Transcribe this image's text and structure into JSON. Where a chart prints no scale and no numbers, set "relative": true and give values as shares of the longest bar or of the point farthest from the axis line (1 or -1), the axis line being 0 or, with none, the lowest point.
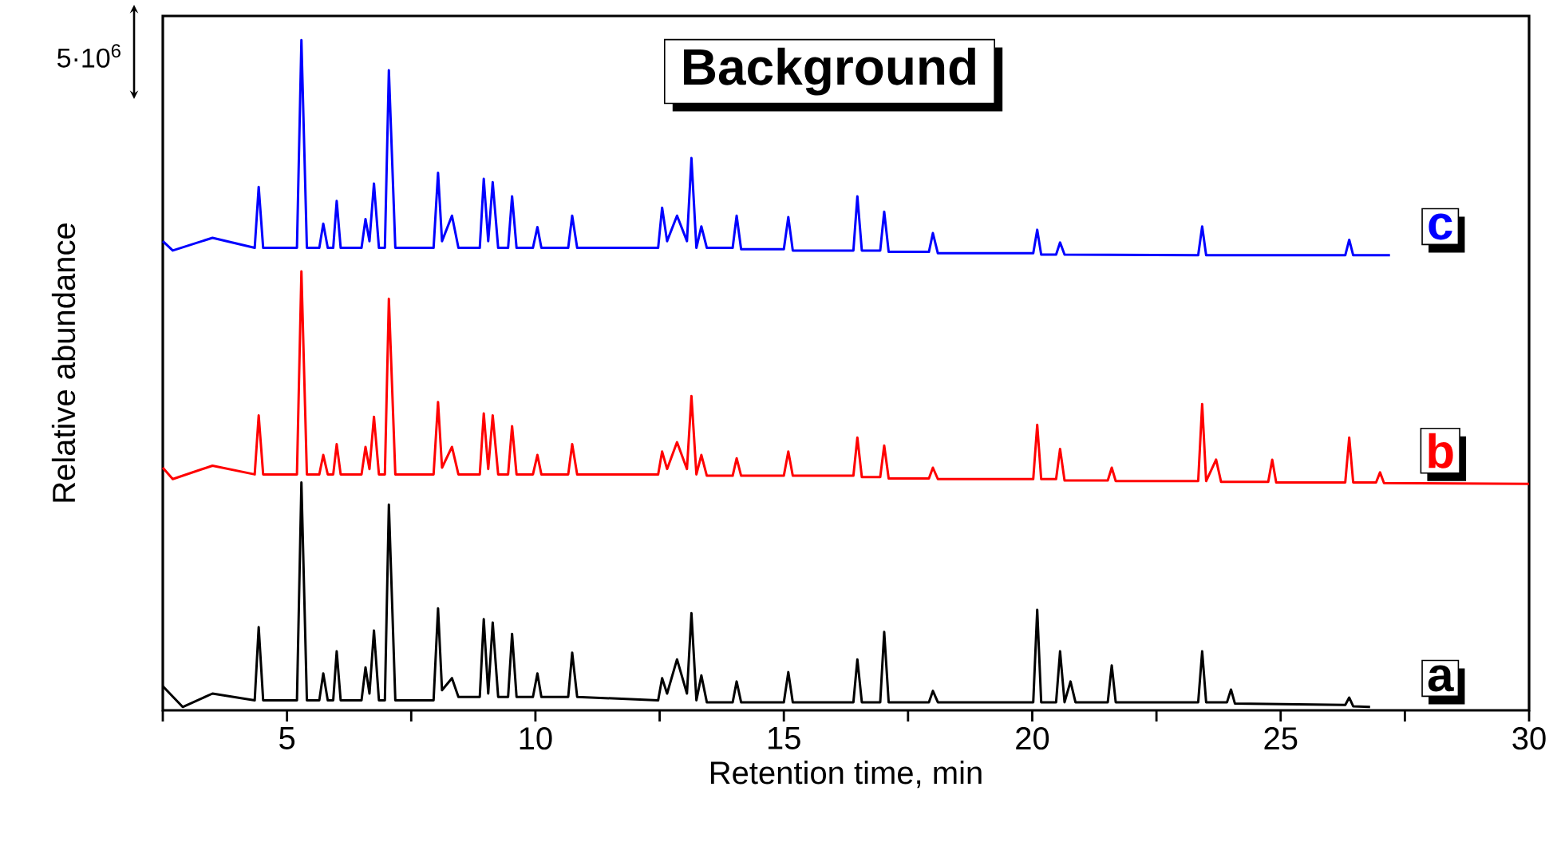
{
  "chart_data": {
    "type": "line",
    "title": "Background",
    "xlabel": "Retention time, min",
    "ylabel": "Relative abundance",
    "relative": true,
    "annotations": [
      "5·10$^{6}$"
    ],
    "xlim": [
      2.5,
      30
    ],
    "xticks": [
      {
        "value": 2.5,
        "label": null
      },
      5,
      {
        "value": 7.5,
        "label": null
      },
      10,
      {
        "value": 12.5,
        "label": null
      },
      15,
      {
        "value": 17.5,
        "label": null
      },
      20,
      {
        "value": 22.5,
        "label": null
      },
      25,
      {
        "value": 27.5,
        "label": null
      },
      30
    ],
    "series": [
      {
        "name": "a",
        "color": "#000000",
        "x": [
          2.5,
          2.9,
          3.5,
          4.35,
          4.43,
          4.52,
          5.2,
          5.29,
          5.4,
          5.65,
          5.73,
          5.82,
          5.93,
          6.0,
          6.08,
          6.5,
          6.58,
          6.66,
          6.75,
          6.85,
          6.97,
          7.05,
          7.18,
          7.95,
          8.04,
          8.12,
          8.32,
          8.45,
          8.88,
          8.96,
          9.05,
          9.14,
          9.25,
          9.45,
          9.53,
          9.62,
          9.95,
          10.04,
          10.12,
          10.66,
          10.74,
          10.84,
          12.47,
          12.55,
          12.65,
          12.85,
          13.05,
          13.14,
          13.24,
          13.34,
          13.45,
          13.97,
          14.05,
          14.14,
          15.0,
          15.09,
          15.18,
          16.4,
          16.48,
          16.57,
          16.94,
          17.02,
          17.11,
          17.92,
          18.0,
          18.1,
          20.02,
          20.1,
          20.18,
          20.48,
          20.56,
          20.65,
          20.77,
          20.87,
          21.52,
          21.6,
          21.68,
          23.34,
          23.42,
          23.5,
          23.92,
          24.0,
          24.08,
          26.3,
          26.38,
          26.46,
          26.8
        ],
        "values": [
          0.036,
          0.005,
          0.025,
          0.015,
          0.124,
          0.015,
          0.015,
          0.34,
          0.015,
          0.015,
          0.055,
          0.015,
          0.015,
          0.088,
          0.015,
          0.015,
          0.064,
          0.025,
          0.119,
          0.015,
          0.015,
          0.307,
          0.015,
          0.015,
          0.152,
          0.03,
          0.048,
          0.02,
          0.02,
          0.136,
          0.025,
          0.131,
          0.02,
          0.02,
          0.114,
          0.02,
          0.02,
          0.055,
          0.02,
          0.02,
          0.086,
          0.02,
          0.015,
          0.048,
          0.025,
          0.076,
          0.025,
          0.145,
          0.015,
          0.052,
          0.012,
          0.012,
          0.043,
          0.012,
          0.012,
          0.057,
          0.012,
          0.012,
          0.076,
          0.012,
          0.012,
          0.117,
          0.012,
          0.012,
          0.029,
          0.012,
          0.012,
          0.15,
          0.012,
          0.012,
          0.088,
          0.012,
          0.043,
          0.012,
          0.012,
          0.067,
          0.012,
          0.012,
          0.088,
          0.012,
          0.012,
          0.031,
          0.01,
          0.008,
          0.019,
          0.006,
          0.005
        ]
      },
      {
        "name": "b",
        "color": "#ff0000",
        "x": [
          2.5,
          2.7,
          3.5,
          4.35,
          4.43,
          4.52,
          5.2,
          5.29,
          5.4,
          5.65,
          5.73,
          5.82,
          5.93,
          6.0,
          6.08,
          6.5,
          6.58,
          6.66,
          6.75,
          6.85,
          6.97,
          7.05,
          7.18,
          7.95,
          8.04,
          8.12,
          8.32,
          8.45,
          8.88,
          8.96,
          9.05,
          9.14,
          9.25,
          9.45,
          9.53,
          9.62,
          9.95,
          10.04,
          10.12,
          10.66,
          10.74,
          10.84,
          12.47,
          12.55,
          12.65,
          12.85,
          13.05,
          13.14,
          13.24,
          13.34,
          13.45,
          13.97,
          14.05,
          14.14,
          15.0,
          15.09,
          15.18,
          16.4,
          16.48,
          16.57,
          16.94,
          17.02,
          17.11,
          17.92,
          18.0,
          18.1,
          20.02,
          20.1,
          20.18,
          20.48,
          20.56,
          20.65,
          21.52,
          21.6,
          21.68,
          23.34,
          23.42,
          23.5,
          23.7,
          23.8,
          24.75,
          24.83,
          24.91,
          26.3,
          26.38,
          26.46,
          26.92,
          27.0,
          27.08,
          30
        ],
        "values": [
          0.362,
          0.345,
          0.365,
          0.352,
          0.44,
          0.352,
          0.352,
          0.655,
          0.352,
          0.352,
          0.381,
          0.352,
          0.352,
          0.397,
          0.352,
          0.352,
          0.393,
          0.36,
          0.438,
          0.352,
          0.352,
          0.614,
          0.352,
          0.352,
          0.46,
          0.362,
          0.393,
          0.352,
          0.352,
          0.443,
          0.36,
          0.44,
          0.352,
          0.352,
          0.424,
          0.352,
          0.352,
          0.381,
          0.352,
          0.352,
          0.397,
          0.352,
          0.352,
          0.386,
          0.36,
          0.4,
          0.36,
          0.469,
          0.352,
          0.381,
          0.35,
          0.35,
          0.376,
          0.35,
          0.35,
          0.386,
          0.35,
          0.35,
          0.407,
          0.348,
          0.348,
          0.395,
          0.346,
          0.346,
          0.362,
          0.345,
          0.345,
          0.426,
          0.345,
          0.345,
          0.39,
          0.343,
          0.343,
          0.362,
          0.342,
          0.342,
          0.457,
          0.342,
          0.374,
          0.341,
          0.341,
          0.374,
          0.34,
          0.34,
          0.407,
          0.34,
          0.34,
          0.355,
          0.339,
          0.338
        ]
      },
      {
        "name": "c",
        "color": "#0000ff",
        "x": [
          2.5,
          2.7,
          3.5,
          4.35,
          4.43,
          4.52,
          5.2,
          5.29,
          5.4,
          5.65,
          5.73,
          5.82,
          5.93,
          6.0,
          6.08,
          6.5,
          6.58,
          6.66,
          6.75,
          6.85,
          6.97,
          7.05,
          7.18,
          7.95,
          8.04,
          8.12,
          8.32,
          8.45,
          8.88,
          8.96,
          9.05,
          9.14,
          9.25,
          9.45,
          9.53,
          9.62,
          9.95,
          10.04,
          10.12,
          10.66,
          10.74,
          10.84,
          12.47,
          12.55,
          12.65,
          12.85,
          13.05,
          13.14,
          13.24,
          13.34,
          13.45,
          13.97,
          14.05,
          14.14,
          15.0,
          15.09,
          15.18,
          16.4,
          16.48,
          16.57,
          16.94,
          17.02,
          17.11,
          17.92,
          18.0,
          18.1,
          20.02,
          20.1,
          20.18,
          20.48,
          20.56,
          20.65,
          23.34,
          23.42,
          23.5,
          26.3,
          26.38,
          26.46,
          27.2
        ],
        "values": [
          0.7,
          0.686,
          0.705,
          0.69,
          0.781,
          0.69,
          0.69,
          1.0,
          0.69,
          0.69,
          0.726,
          0.69,
          0.69,
          0.76,
          0.69,
          0.69,
          0.733,
          0.7,
          0.786,
          0.69,
          0.69,
          0.955,
          0.69,
          0.69,
          0.802,
          0.7,
          0.738,
          0.69,
          0.69,
          0.793,
          0.7,
          0.788,
          0.69,
          0.69,
          0.767,
          0.69,
          0.69,
          0.721,
          0.69,
          0.69,
          0.738,
          0.69,
          0.69,
          0.75,
          0.7,
          0.738,
          0.7,
          0.824,
          0.69,
          0.722,
          0.69,
          0.69,
          0.738,
          0.688,
          0.688,
          0.736,
          0.686,
          0.686,
          0.767,
          0.686,
          0.686,
          0.744,
          0.684,
          0.684,
          0.712,
          0.682,
          0.682,
          0.717,
          0.68,
          0.68,
          0.698,
          0.68,
          0.679,
          0.722,
          0.679,
          0.679,
          0.702,
          0.679,
          0.679
        ]
      }
    ]
  }
}
